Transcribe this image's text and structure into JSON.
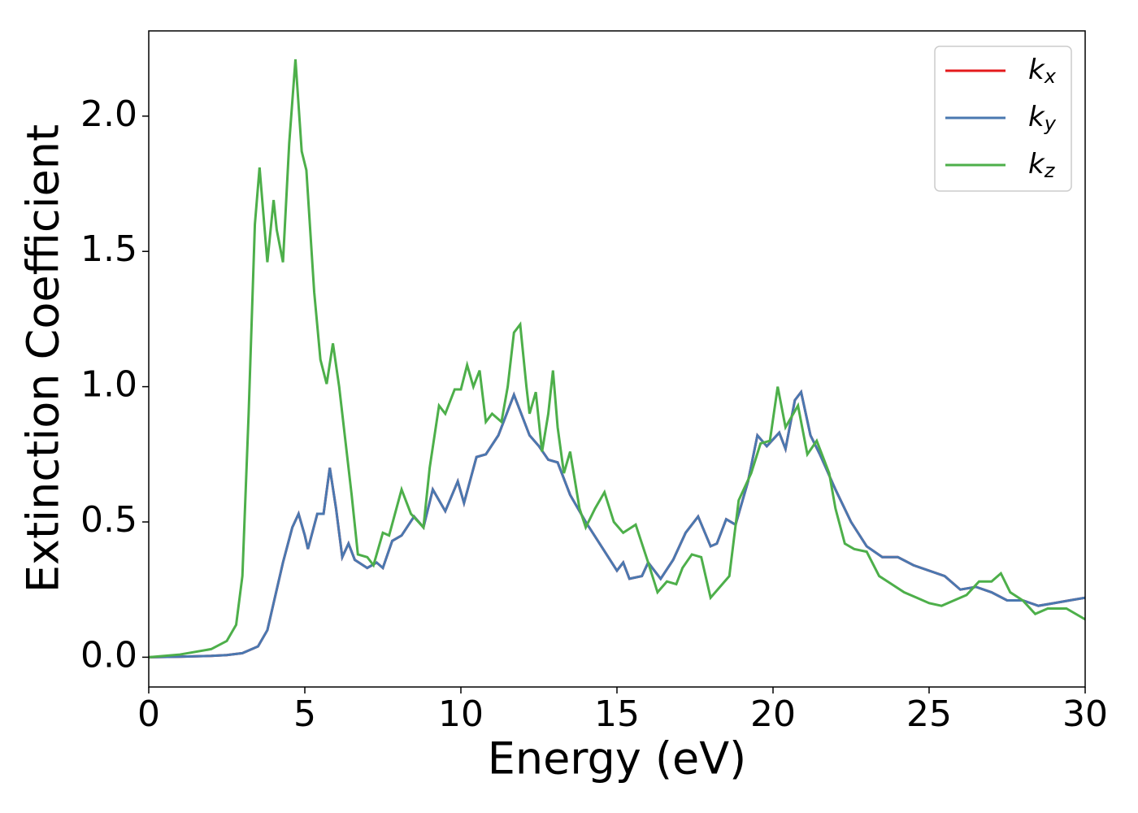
{
  "chart_data": {
    "type": "line",
    "xlabel": "Energy (eV)",
    "ylabel": "Extinction Coefficient",
    "xlim": [
      0,
      30
    ],
    "ylim": [
      -0.11,
      2.315
    ],
    "xticks": [
      0,
      5,
      10,
      15,
      20,
      25,
      30
    ],
    "yticks": [
      {
        "value": 0,
        "label": "0.0"
      },
      0.5,
      {
        "value": 1,
        "label": "1.0"
      },
      1.5,
      {
        "value": 2,
        "label": "2.0"
      }
    ],
    "legend": "upper right",
    "series": [
      {
        "name": "kx",
        "color": "#e41a1c",
        "x": [
          0,
          1,
          2,
          2.5,
          3,
          3.5,
          3.8,
          4.0,
          4.3,
          4.6,
          4.8,
          5.0,
          5.1,
          5.4,
          5.6,
          5.8,
          6.0,
          6.2,
          6.4,
          6.6,
          7.0,
          7.3,
          7.5,
          7.8,
          8.1,
          8.5,
          8.8,
          9.1,
          9.5,
          9.9,
          10.1,
          10.5,
          10.8,
          11.2,
          11.7,
          12.2,
          12.5,
          12.8,
          13.1,
          13.5,
          14.0,
          14.5,
          15.0,
          15.2,
          15.4,
          15.8,
          16.0,
          16.4,
          16.8,
          17.2,
          17.6,
          18.0,
          18.2,
          18.5,
          18.8,
          19.2,
          19.5,
          19.8,
          20.2,
          20.4,
          20.7,
          20.9,
          21.2,
          21.5,
          22.0,
          22.5,
          23.0,
          23.5,
          24.0,
          24.5,
          25.0,
          25.5,
          26.0,
          26.5,
          27.0,
          27.5,
          28.0,
          28.5,
          29.0,
          29.5,
          30
        ],
        "values": [
          0,
          0.002,
          0.005,
          0.008,
          0.015,
          0.04,
          0.1,
          0.2,
          0.35,
          0.48,
          0.53,
          0.45,
          0.4,
          0.53,
          0.53,
          0.7,
          0.55,
          0.37,
          0.42,
          0.36,
          0.33,
          0.35,
          0.33,
          0.43,
          0.45,
          0.52,
          0.48,
          0.62,
          0.54,
          0.65,
          0.57,
          0.74,
          0.75,
          0.82,
          0.97,
          0.82,
          0.78,
          0.73,
          0.72,
          0.6,
          0.5,
          0.41,
          0.32,
          0.35,
          0.29,
          0.3,
          0.35,
          0.29,
          0.36,
          0.46,
          0.52,
          0.41,
          0.42,
          0.51,
          0.49,
          0.65,
          0.82,
          0.78,
          0.83,
          0.77,
          0.95,
          0.98,
          0.82,
          0.75,
          0.62,
          0.5,
          0.41,
          0.37,
          0.37,
          0.34,
          0.32,
          0.3,
          0.25,
          0.26,
          0.24,
          0.21,
          0.21,
          0.19,
          0.2,
          0.21,
          0.22
        ]
      },
      {
        "name": "ky",
        "color": "#4a78b0",
        "x": [
          0,
          1,
          2,
          2.5,
          3,
          3.5,
          3.8,
          4.0,
          4.3,
          4.6,
          4.8,
          5.0,
          5.1,
          5.4,
          5.6,
          5.8,
          6.0,
          6.2,
          6.4,
          6.6,
          7.0,
          7.3,
          7.5,
          7.8,
          8.1,
          8.5,
          8.8,
          9.1,
          9.5,
          9.9,
          10.1,
          10.5,
          10.8,
          11.2,
          11.7,
          12.2,
          12.5,
          12.8,
          13.1,
          13.5,
          14.0,
          14.5,
          15.0,
          15.2,
          15.4,
          15.8,
          16.0,
          16.4,
          16.8,
          17.2,
          17.6,
          18.0,
          18.2,
          18.5,
          18.8,
          19.2,
          19.5,
          19.8,
          20.2,
          20.4,
          20.7,
          20.9,
          21.2,
          21.5,
          22.0,
          22.5,
          23.0,
          23.5,
          24.0,
          24.5,
          25.0,
          25.5,
          26.0,
          26.5,
          27.0,
          27.5,
          28.0,
          28.5,
          29.0,
          29.5,
          30
        ],
        "values": [
          0,
          0.002,
          0.005,
          0.008,
          0.015,
          0.04,
          0.1,
          0.2,
          0.35,
          0.48,
          0.53,
          0.45,
          0.4,
          0.53,
          0.53,
          0.7,
          0.55,
          0.37,
          0.42,
          0.36,
          0.33,
          0.35,
          0.33,
          0.43,
          0.45,
          0.52,
          0.48,
          0.62,
          0.54,
          0.65,
          0.57,
          0.74,
          0.75,
          0.82,
          0.97,
          0.82,
          0.78,
          0.73,
          0.72,
          0.6,
          0.5,
          0.41,
          0.32,
          0.35,
          0.29,
          0.3,
          0.35,
          0.29,
          0.36,
          0.46,
          0.52,
          0.41,
          0.42,
          0.51,
          0.49,
          0.65,
          0.82,
          0.78,
          0.83,
          0.77,
          0.95,
          0.98,
          0.82,
          0.75,
          0.62,
          0.5,
          0.41,
          0.37,
          0.37,
          0.34,
          0.32,
          0.3,
          0.25,
          0.26,
          0.24,
          0.21,
          0.21,
          0.19,
          0.2,
          0.21,
          0.22
        ]
      },
      {
        "name": "kz",
        "color": "#4daf4a",
        "x": [
          0,
          1,
          2,
          2.5,
          2.8,
          3.0,
          3.2,
          3.4,
          3.55,
          3.7,
          3.8,
          4.0,
          4.1,
          4.3,
          4.5,
          4.7,
          4.9,
          5.05,
          5.3,
          5.5,
          5.7,
          5.9,
          6.1,
          6.3,
          6.5,
          6.7,
          7.0,
          7.2,
          7.5,
          7.7,
          8.1,
          8.4,
          8.8,
          9.0,
          9.3,
          9.5,
          9.8,
          10.0,
          10.2,
          10.4,
          10.6,
          10.8,
          11.0,
          11.3,
          11.5,
          11.7,
          11.9,
          12.1,
          12.2,
          12.4,
          12.6,
          12.8,
          12.95,
          13.1,
          13.3,
          13.5,
          13.8,
          14.0,
          14.3,
          14.6,
          14.9,
          15.2,
          15.6,
          16.0,
          16.3,
          16.6,
          16.9,
          17.1,
          17.4,
          17.7,
          18.0,
          18.3,
          18.6,
          18.9,
          19.3,
          19.6,
          19.9,
          20.15,
          20.4,
          20.8,
          21.1,
          21.4,
          21.8,
          22.0,
          22.3,
          22.6,
          23.0,
          23.4,
          23.8,
          24.2,
          24.6,
          25.0,
          25.4,
          25.8,
          26.2,
          26.6,
          27.0,
          27.3,
          27.6,
          28.0,
          28.4,
          28.8,
          29.4,
          30
        ],
        "values": [
          0,
          0.01,
          0.03,
          0.06,
          0.12,
          0.3,
          0.9,
          1.6,
          1.81,
          1.6,
          1.46,
          1.69,
          1.58,
          1.46,
          1.9,
          2.21,
          1.87,
          1.8,
          1.35,
          1.1,
          1.01,
          1.16,
          1.0,
          0.8,
          0.6,
          0.38,
          0.37,
          0.34,
          0.46,
          0.45,
          0.62,
          0.53,
          0.48,
          0.7,
          0.93,
          0.9,
          0.99,
          0.99,
          1.08,
          1.0,
          1.06,
          0.87,
          0.9,
          0.87,
          1.0,
          1.2,
          1.23,
          1.0,
          0.9,
          0.98,
          0.76,
          0.9,
          1.06,
          0.85,
          0.68,
          0.76,
          0.55,
          0.48,
          0.55,
          0.61,
          0.5,
          0.46,
          0.49,
          0.35,
          0.24,
          0.28,
          0.27,
          0.33,
          0.38,
          0.37,
          0.22,
          0.26,
          0.3,
          0.58,
          0.68,
          0.79,
          0.8,
          1.0,
          0.85,
          0.93,
          0.75,
          0.8,
          0.68,
          0.55,
          0.42,
          0.4,
          0.39,
          0.3,
          0.27,
          0.24,
          0.22,
          0.2,
          0.19,
          0.21,
          0.23,
          0.28,
          0.28,
          0.31,
          0.24,
          0.21,
          0.16,
          0.18,
          0.18,
          0.14
        ]
      }
    ]
  }
}
